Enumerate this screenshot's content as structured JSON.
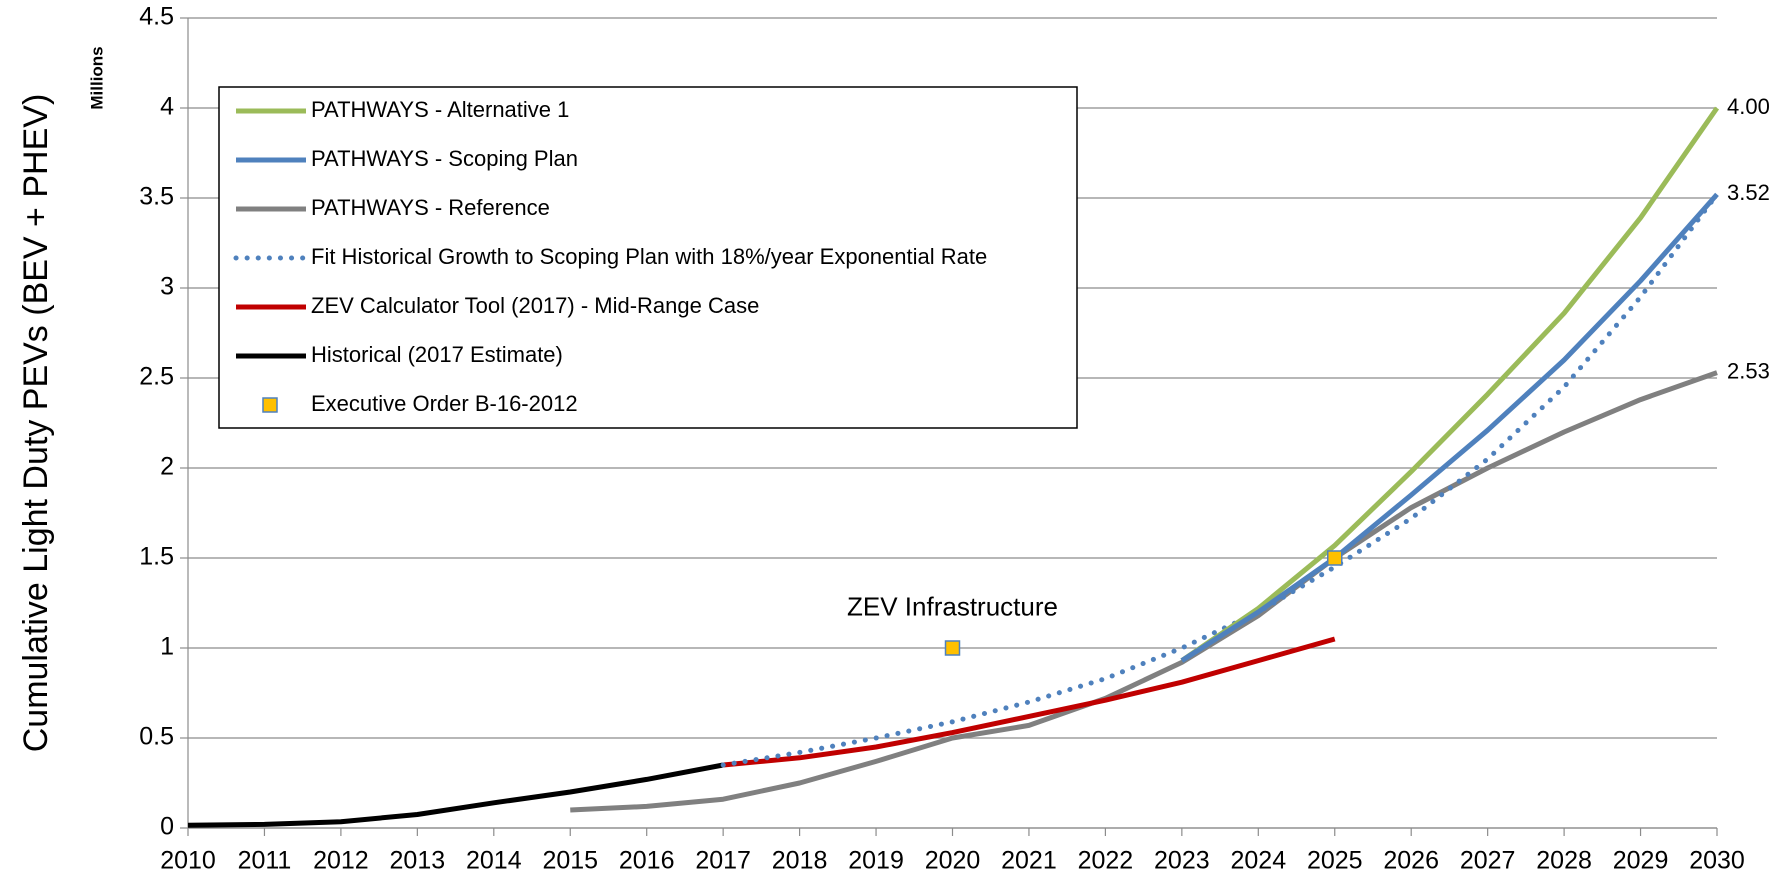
{
  "chart_data": {
    "type": "line",
    "y_label": "Cumulative Light Duty PEVs (BEV + PHEV)",
    "y_units": "Millions",
    "annotation": "ZEV Infrastructure",
    "xlim": [
      2010,
      2030
    ],
    "xticks": [
      2010,
      2011,
      2012,
      2013,
      2014,
      2015,
      2016,
      2017,
      2018,
      2019,
      2020,
      2021,
      2022,
      2023,
      2024,
      2025,
      2026,
      2027,
      2028,
      2029,
      2030
    ],
    "ylim": [
      0,
      4.5
    ],
    "yticks": [
      0,
      0.5,
      1,
      1.5,
      2,
      2.5,
      3,
      3.5,
      4,
      4.5
    ],
    "grid": true,
    "legend": "upper left",
    "series": [
      {
        "name": "PATHWAYS - Alternative 1",
        "color": "#9bbb59",
        "style": "solid",
        "x": [
          2023,
          2024,
          2025,
          2026,
          2027,
          2028,
          2029,
          2030
        ],
        "values": [
          0.93,
          1.22,
          1.57,
          1.98,
          2.41,
          2.86,
          3.39,
          4.0
        ],
        "value_labels": [
          null,
          null,
          null,
          null,
          null,
          null,
          null,
          "4.00"
        ]
      },
      {
        "name": "PATHWAYS - Scoping Plan",
        "color": "#4f81bd",
        "style": "solid",
        "x": [
          2023,
          2024,
          2025,
          2026,
          2027,
          2028,
          2029,
          2030
        ],
        "values": [
          0.93,
          1.2,
          1.5,
          1.85,
          2.21,
          2.6,
          3.04,
          3.52
        ],
        "value_labels": [
          null,
          null,
          null,
          null,
          null,
          null,
          null,
          "3.52"
        ]
      },
      {
        "name": "PATHWAYS - Reference",
        "color": "#808080",
        "style": "solid",
        "x": [
          2015,
          2016,
          2017,
          2018,
          2019,
          2020,
          2021,
          2022,
          2023,
          2024,
          2025,
          2026,
          2027,
          2028,
          2029,
          2030
        ],
        "values": [
          0.1,
          0.12,
          0.16,
          0.25,
          0.37,
          0.5,
          0.57,
          0.72,
          0.92,
          1.18,
          1.5,
          1.78,
          2.0,
          2.2,
          2.38,
          2.53
        ],
        "value_labels": [
          null,
          null,
          null,
          null,
          null,
          null,
          null,
          null,
          null,
          null,
          null,
          null,
          null,
          null,
          null,
          "2.53"
        ]
      },
      {
        "name": "Fit Historical Growth to Scoping Plan with 18%/year Exponential Rate",
        "color": "#4f81bd",
        "style": "dotted",
        "x": [
          2017,
          2018,
          2019,
          2020,
          2021,
          2022,
          2023,
          2024,
          2025,
          2026,
          2027,
          2028,
          2029,
          2030
        ],
        "values": [
          0.35,
          0.42,
          0.5,
          0.59,
          0.7,
          0.83,
          1.0,
          1.2,
          1.45,
          1.72,
          2.05,
          2.45,
          2.95,
          3.52
        ]
      },
      {
        "name": "ZEV Calculator Tool (2017) - Mid-Range Case",
        "color": "#c00000",
        "style": "solid",
        "x": [
          2017,
          2018,
          2019,
          2020,
          2021,
          2022,
          2023,
          2024,
          2025
        ],
        "values": [
          0.35,
          0.39,
          0.45,
          0.53,
          0.62,
          0.71,
          0.81,
          0.93,
          1.05
        ]
      },
      {
        "name": "Historical (2017 Estimate)",
        "color": "#000000",
        "style": "solid",
        "x": [
          2010,
          2011,
          2012,
          2013,
          2014,
          2015,
          2016,
          2017
        ],
        "values": [
          0.015,
          0.02,
          0.035,
          0.075,
          0.14,
          0.2,
          0.27,
          0.35
        ]
      },
      {
        "name": "Executive Order B-16-2012",
        "color": "#ffc000",
        "style": "markers",
        "x": [
          2020,
          2025
        ],
        "values": [
          1.0,
          1.5
        ]
      }
    ]
  }
}
